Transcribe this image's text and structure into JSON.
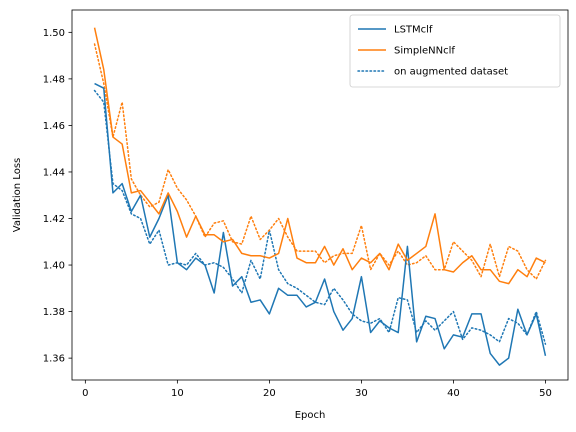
{
  "chart_data": {
    "type": "line",
    "title": "",
    "xlabel": "Epoch",
    "ylabel": "Validation Loss",
    "xlim": [
      -1.45,
      52.45
    ],
    "ylim": [
      1.3506,
      1.5096
    ],
    "xticks": [
      0,
      10,
      20,
      30,
      40,
      50
    ],
    "xtick_labels": [
      "0",
      "10",
      "20",
      "30",
      "40",
      "50"
    ],
    "yticks": [
      1.36,
      1.38,
      1.4,
      1.42,
      1.44,
      1.46,
      1.48,
      1.5
    ],
    "ytick_labels": [
      "1.36",
      "1.38",
      "1.40",
      "1.42",
      "1.44",
      "1.46",
      "1.48",
      "1.50"
    ],
    "grid": false,
    "legend_position": "top-right",
    "x": [
      1,
      2,
      3,
      4,
      5,
      6,
      7,
      8,
      9,
      10,
      11,
      12,
      13,
      14,
      15,
      16,
      17,
      18,
      19,
      20,
      21,
      22,
      23,
      24,
      25,
      26,
      27,
      28,
      29,
      30,
      31,
      32,
      33,
      34,
      35,
      36,
      37,
      38,
      39,
      40,
      41,
      42,
      43,
      44,
      45,
      46,
      47,
      48,
      49,
      50
    ],
    "series": [
      {
        "name": "LSTMclf",
        "style": "solid",
        "color": "#1f77b4",
        "values": [
          1.478,
          1.476,
          1.431,
          1.435,
          1.423,
          1.43,
          1.412,
          1.42,
          1.43,
          1.401,
          1.398,
          1.403,
          1.4,
          1.388,
          1.414,
          1.391,
          1.395,
          1.384,
          1.385,
          1.379,
          1.39,
          1.387,
          1.387,
          1.382,
          1.384,
          1.394,
          1.38,
          1.372,
          1.377,
          1.395,
          1.371,
          1.376,
          1.373,
          1.371,
          1.408,
          1.367,
          1.378,
          1.377,
          1.364,
          1.37,
          1.369,
          1.379,
          1.379,
          1.362,
          1.357,
          1.36,
          1.381,
          1.37,
          1.379,
          1.361
        ]
      },
      {
        "name": "SimpleNNclf",
        "style": "solid",
        "color": "#ff7f0e",
        "values": [
          1.502,
          1.484,
          1.455,
          1.452,
          1.431,
          1.432,
          1.427,
          1.422,
          1.431,
          1.423,
          1.412,
          1.421,
          1.413,
          1.413,
          1.41,
          1.411,
          1.405,
          1.404,
          1.404,
          1.403,
          1.405,
          1.42,
          1.403,
          1.401,
          1.401,
          1.408,
          1.4,
          1.407,
          1.398,
          1.403,
          1.401,
          1.405,
          1.398,
          1.409,
          1.402,
          1.405,
          1.408,
          1.422,
          1.398,
          1.397,
          1.401,
          1.404,
          1.398,
          1.398,
          1.393,
          1.392,
          1.398,
          1.395,
          1.403,
          1.401
        ]
      },
      {
        "name": "LSTMclf (augmented)",
        "style": "dotted",
        "color": "#1f77b4",
        "values": [
          1.475,
          1.47,
          1.435,
          1.432,
          1.422,
          1.42,
          1.409,
          1.415,
          1.4,
          1.401,
          1.4,
          1.405,
          1.4,
          1.401,
          1.399,
          1.394,
          1.388,
          1.402,
          1.394,
          1.415,
          1.398,
          1.392,
          1.39,
          1.387,
          1.384,
          1.383,
          1.39,
          1.385,
          1.379,
          1.376,
          1.375,
          1.377,
          1.371,
          1.386,
          1.385,
          1.371,
          1.376,
          1.372,
          1.376,
          1.38,
          1.368,
          1.373,
          1.372,
          1.37,
          1.367,
          1.377,
          1.375,
          1.37,
          1.38,
          1.366
        ]
      },
      {
        "name": "SimpleNNclf (augmented)",
        "style": "dotted",
        "color": "#ff7f0e",
        "values": [
          1.495,
          1.478,
          1.455,
          1.47,
          1.437,
          1.43,
          1.425,
          1.427,
          1.441,
          1.433,
          1.428,
          1.421,
          1.412,
          1.418,
          1.419,
          1.41,
          1.409,
          1.421,
          1.411,
          1.415,
          1.42,
          1.412,
          1.406,
          1.406,
          1.406,
          1.401,
          1.404,
          1.405,
          1.405,
          1.417,
          1.398,
          1.405,
          1.4,
          1.406,
          1.4,
          1.401,
          1.404,
          1.398,
          1.398,
          1.41,
          1.406,
          1.402,
          1.395,
          1.409,
          1.395,
          1.408,
          1.406,
          1.398,
          1.394,
          1.402
        ]
      }
    ],
    "legend": [
      {
        "label": "LSTMclf",
        "color": "#1f77b4",
        "style": "solid"
      },
      {
        "label": "SimpleNNclf",
        "color": "#ff7f0e",
        "style": "solid"
      },
      {
        "label": "on augmented dataset",
        "color": "#1f77b4",
        "style": "dotted"
      }
    ]
  }
}
